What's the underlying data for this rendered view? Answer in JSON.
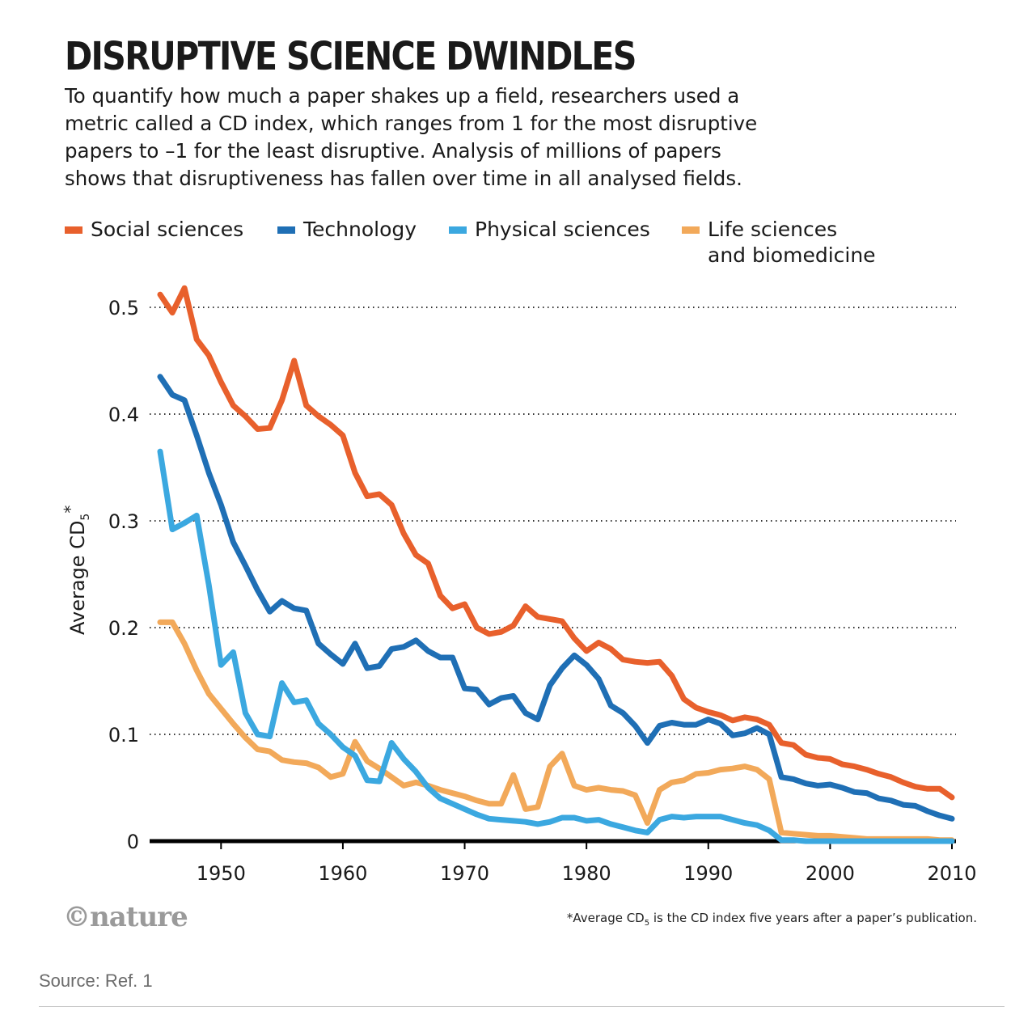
{
  "header": {
    "title": "DISRUPTIVE SCIENCE DWINDLES",
    "subtitle_lines": [
      "To quantify how much a paper shakes up a field, researchers used a",
      "metric called a CD index, which ranges from 1 for the most disruptive",
      "papers to –1 for the least disruptive. Analysis of millions of papers",
      "shows that disruptiveness has fallen over time in all analysed fields."
    ]
  },
  "colors": {
    "social": "#e8602c",
    "technology": "#1f6fb5",
    "physical": "#3ba8e0",
    "life": "#f2a95a"
  },
  "legend": [
    {
      "label": "Social sciences",
      "color": "#e8602c"
    },
    {
      "label": "Technology",
      "color": "#1f6fb5"
    },
    {
      "label": "Physical sciences",
      "color": "#3ba8e0"
    },
    {
      "label": "Life sciences\nand biomedicine",
      "color": "#f2a95a"
    }
  ],
  "chart_data": {
    "type": "line",
    "xlabel": "",
    "ylabel": "Average CD5*",
    "xlim": [
      1945,
      2010
    ],
    "ylim": [
      0,
      0.5
    ],
    "x_ticks": [
      1950,
      1960,
      1970,
      1980,
      1990,
      2000,
      2010
    ],
    "y_ticks": [
      0,
      0.1,
      0.2,
      0.3,
      0.4,
      0.5
    ],
    "y_tick_labels": [
      "0",
      "0.1",
      "0.2",
      "0.3",
      "0.4",
      "0.5"
    ],
    "grid": "horizontal dotted",
    "legend_position": "top",
    "series": [
      {
        "name": "Life sciences and biomedicine",
        "color": "#f2a95a",
        "points": [
          [
            1945,
            0.205
          ],
          [
            1946,
            0.205
          ],
          [
            1947,
            0.185
          ],
          [
            1948,
            0.16
          ],
          [
            1949,
            0.138
          ],
          [
            1950,
            0.124
          ],
          [
            1951,
            0.11
          ],
          [
            1952,
            0.097
          ],
          [
            1953,
            0.086
          ],
          [
            1954,
            0.084
          ],
          [
            1955,
            0.076
          ],
          [
            1956,
            0.074
          ],
          [
            1957,
            0.073
          ],
          [
            1958,
            0.069
          ],
          [
            1959,
            0.06
          ],
          [
            1960,
            0.063
          ],
          [
            1961,
            0.093
          ],
          [
            1962,
            0.075
          ],
          [
            1963,
            0.068
          ],
          [
            1964,
            0.06
          ],
          [
            1965,
            0.052
          ],
          [
            1966,
            0.055
          ],
          [
            1967,
            0.052
          ],
          [
            1968,
            0.048
          ],
          [
            1969,
            0.045
          ],
          [
            1970,
            0.042
          ],
          [
            1971,
            0.038
          ],
          [
            1972,
            0.035
          ],
          [
            1973,
            0.035
          ],
          [
            1974,
            0.062
          ],
          [
            1975,
            0.03
          ],
          [
            1976,
            0.032
          ],
          [
            1977,
            0.07
          ],
          [
            1978,
            0.082
          ],
          [
            1979,
            0.052
          ],
          [
            1980,
            0.048
          ],
          [
            1981,
            0.05
          ],
          [
            1982,
            0.048
          ],
          [
            1983,
            0.047
          ],
          [
            1984,
            0.043
          ],
          [
            1985,
            0.017
          ],
          [
            1986,
            0.048
          ],
          [
            1987,
            0.055
          ],
          [
            1988,
            0.057
          ],
          [
            1989,
            0.063
          ],
          [
            1990,
            0.064
          ],
          [
            1991,
            0.067
          ],
          [
            1992,
            0.068
          ],
          [
            1993,
            0.07
          ],
          [
            1994,
            0.067
          ],
          [
            1995,
            0.058
          ],
          [
            1996,
            0.008
          ],
          [
            1997,
            0.007
          ],
          [
            1998,
            0.006
          ],
          [
            1999,
            0.005
          ],
          [
            2000,
            0.005
          ],
          [
            2001,
            0.004
          ],
          [
            2002,
            0.003
          ],
          [
            2003,
            0.002
          ],
          [
            2004,
            0.002
          ],
          [
            2005,
            0.002
          ],
          [
            2006,
            0.002
          ],
          [
            2007,
            0.002
          ],
          [
            2008,
            0.002
          ],
          [
            2009,
            0.001
          ],
          [
            2010,
            0.001
          ]
        ]
      },
      {
        "name": "Physical sciences",
        "color": "#3ba8e0",
        "points": [
          [
            1945,
            0.365
          ],
          [
            1946,
            0.292
          ],
          [
            1947,
            0.298
          ],
          [
            1948,
            0.305
          ],
          [
            1949,
            0.24
          ],
          [
            1950,
            0.165
          ],
          [
            1951,
            0.177
          ],
          [
            1952,
            0.12
          ],
          [
            1953,
            0.1
          ],
          [
            1954,
            0.098
          ],
          [
            1955,
            0.148
          ],
          [
            1956,
            0.13
          ],
          [
            1957,
            0.132
          ],
          [
            1958,
            0.11
          ],
          [
            1959,
            0.1
          ],
          [
            1960,
            0.088
          ],
          [
            1961,
            0.08
          ],
          [
            1962,
            0.057
          ],
          [
            1963,
            0.056
          ],
          [
            1964,
            0.092
          ]
        ],
        "points_segment_2": [
          [
            1964,
            0.092
          ],
          [
            1965,
            0.077
          ],
          [
            1966,
            0.065
          ],
          [
            1967,
            0.05
          ],
          [
            1968,
            0.04
          ],
          [
            1969,
            0.035
          ],
          [
            1970,
            0.03
          ],
          [
            1971,
            0.025
          ],
          [
            1972,
            0.021
          ],
          [
            1973,
            0.02
          ],
          [
            1974,
            0.019
          ],
          [
            1975,
            0.018
          ],
          [
            1976,
            0.016
          ],
          [
            1977,
            0.018
          ],
          [
            1978,
            0.022
          ],
          [
            1979,
            0.022
          ],
          [
            1980,
            0.019
          ],
          [
            1981,
            0.02
          ],
          [
            1982,
            0.016
          ],
          [
            1983,
            0.013
          ],
          [
            1984,
            0.01
          ],
          [
            1985,
            0.008
          ],
          [
            1986,
            0.02
          ],
          [
            1987,
            0.023
          ],
          [
            1988,
            0.022
          ],
          [
            1989,
            0.023
          ],
          [
            1990,
            0.023
          ],
          [
            1991,
            0.023
          ],
          [
            1992,
            0.02
          ],
          [
            1993,
            0.017
          ],
          [
            1994,
            0.015
          ],
          [
            1995,
            0.01
          ],
          [
            1996,
            0.001
          ],
          [
            1997,
            0.001
          ],
          [
            1998,
            0.0
          ],
          [
            1999,
            0.0
          ],
          [
            2000,
            0.0
          ],
          [
            2005,
            0.0
          ],
          [
            2010,
            0.0
          ]
        ]
      },
      {
        "name": "Technology",
        "color": "#1f6fb5",
        "points": [
          [
            1945,
            0.435
          ],
          [
            1946,
            0.418
          ],
          [
            1947,
            0.413
          ],
          [
            1948,
            0.38
          ],
          [
            1949,
            0.345
          ],
          [
            1950,
            0.315
          ],
          [
            1951,
            0.28
          ],
          [
            1952,
            0.258
          ],
          [
            1953,
            0.235
          ],
          [
            1954,
            0.215
          ],
          [
            1955,
            0.225
          ],
          [
            1956,
            0.218
          ],
          [
            1957,
            0.216
          ],
          [
            1958,
            0.185
          ],
          [
            1959,
            0.175
          ],
          [
            1960,
            0.166
          ],
          [
            1961,
            0.185
          ],
          [
            1962,
            0.162
          ],
          [
            1963,
            0.164
          ],
          [
            1964,
            0.18
          ],
          [
            1965,
            0.182
          ],
          [
            1966,
            0.188
          ],
          [
            1967,
            0.178
          ],
          [
            1968,
            0.172
          ],
          [
            1969,
            0.172
          ],
          [
            1970,
            0.143
          ],
          [
            1971,
            0.142
          ],
          [
            1972,
            0.128
          ],
          [
            1973,
            0.134
          ],
          [
            1974,
            0.136
          ],
          [
            1975,
            0.12
          ],
          [
            1976,
            0.114
          ],
          [
            1977,
            0.146
          ],
          [
            1978,
            0.162
          ],
          [
            1979,
            0.174
          ],
          [
            1980,
            0.165
          ],
          [
            1981,
            0.152
          ],
          [
            1982,
            0.127
          ],
          [
            1983,
            0.12
          ],
          [
            1984,
            0.108
          ],
          [
            1985,
            0.092
          ],
          [
            1986,
            0.108
          ],
          [
            1987,
            0.111
          ],
          [
            1988,
            0.109
          ],
          [
            1989,
            0.109
          ],
          [
            1990,
            0.114
          ],
          [
            1991,
            0.11
          ],
          [
            1992,
            0.099
          ],
          [
            1993,
            0.101
          ],
          [
            1994,
            0.106
          ],
          [
            1995,
            0.1
          ],
          [
            1996,
            0.06
          ],
          [
            1997,
            0.058
          ],
          [
            1998,
            0.054
          ],
          [
            1999,
            0.052
          ],
          [
            2000,
            0.053
          ],
          [
            2001,
            0.05
          ],
          [
            2002,
            0.046
          ],
          [
            2003,
            0.045
          ],
          [
            2004,
            0.04
          ],
          [
            2005,
            0.038
          ],
          [
            2006,
            0.034
          ],
          [
            2007,
            0.033
          ],
          [
            2008,
            0.028
          ],
          [
            2009,
            0.024
          ],
          [
            2010,
            0.021
          ]
        ]
      },
      {
        "name": "Social sciences",
        "color": "#e8602c",
        "points": [
          [
            1945,
            0.512
          ],
          [
            1946,
            0.495
          ],
          [
            1947,
            0.518
          ],
          [
            1948,
            0.47
          ],
          [
            1949,
            0.455
          ],
          [
            1950,
            0.43
          ],
          [
            1951,
            0.408
          ],
          [
            1952,
            0.398
          ],
          [
            1953,
            0.386
          ],
          [
            1954,
            0.387
          ],
          [
            1955,
            0.413
          ],
          [
            1956,
            0.45
          ],
          [
            1957,
            0.408
          ],
          [
            1958,
            0.398
          ],
          [
            1959,
            0.39
          ],
          [
            1960,
            0.38
          ],
          [
            1961,
            0.345
          ],
          [
            1962,
            0.323
          ],
          [
            1963,
            0.325
          ],
          [
            1964,
            0.315
          ],
          [
            1965,
            0.288
          ],
          [
            1966,
            0.268
          ],
          [
            1967,
            0.26
          ],
          [
            1968,
            0.23
          ],
          [
            1969,
            0.218
          ],
          [
            1970,
            0.222
          ],
          [
            1971,
            0.2
          ],
          [
            1972,
            0.194
          ],
          [
            1973,
            0.196
          ],
          [
            1974,
            0.202
          ],
          [
            1975,
            0.22
          ],
          [
            1976,
            0.21
          ],
          [
            1977,
            0.208
          ],
          [
            1978,
            0.206
          ],
          [
            1979,
            0.19
          ],
          [
            1980,
            0.178
          ],
          [
            1981,
            0.186
          ],
          [
            1982,
            0.18
          ],
          [
            1983,
            0.17
          ],
          [
            1984,
            0.168
          ],
          [
            1985,
            0.167
          ],
          [
            1986,
            0.168
          ],
          [
            1987,
            0.155
          ],
          [
            1988,
            0.133
          ],
          [
            1989,
            0.125
          ],
          [
            1990,
            0.121
          ],
          [
            1991,
            0.118
          ],
          [
            1992,
            0.113
          ],
          [
            1993,
            0.116
          ],
          [
            1994,
            0.114
          ],
          [
            1995,
            0.109
          ],
          [
            1996,
            0.092
          ],
          [
            1997,
            0.09
          ],
          [
            1998,
            0.081
          ],
          [
            1999,
            0.078
          ],
          [
            2000,
            0.077
          ],
          [
            2001,
            0.072
          ],
          [
            2002,
            0.07
          ],
          [
            2003,
            0.067
          ],
          [
            2004,
            0.063
          ],
          [
            2005,
            0.06
          ],
          [
            2006,
            0.055
          ],
          [
            2007,
            0.051
          ],
          [
            2008,
            0.049
          ],
          [
            2009,
            0.049
          ],
          [
            2010,
            0.041
          ]
        ]
      }
    ]
  },
  "footer": {
    "logo": "©nature",
    "footnote_a": "*Average CD",
    "footnote_sub": "5",
    "footnote_b": " is the CD index five years after a paper’s publication.",
    "source": "Source: Ref. 1"
  }
}
